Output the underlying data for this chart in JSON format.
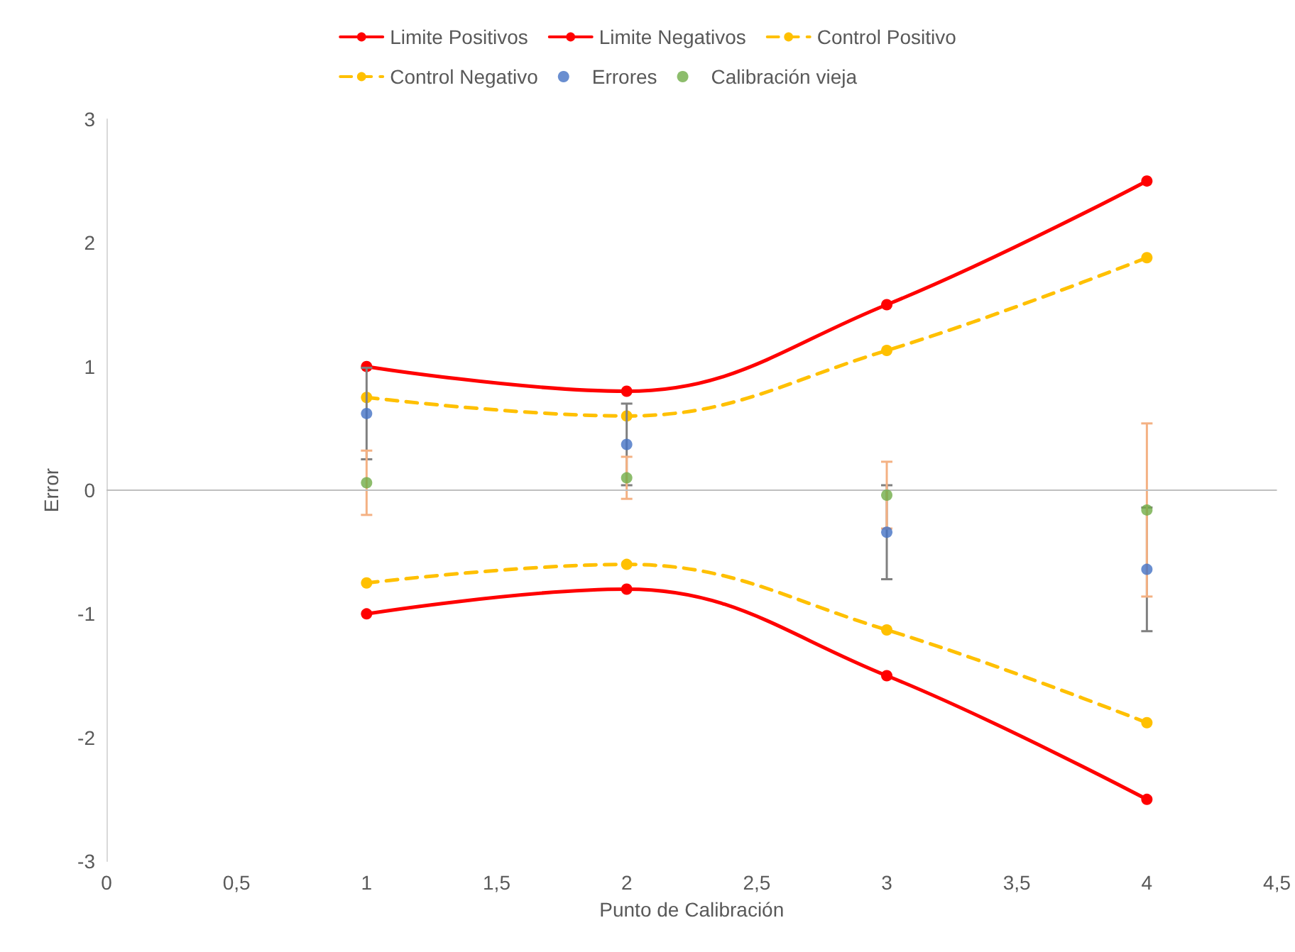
{
  "chart_data": {
    "type": "line",
    "xlabel": "Punto de Calibración",
    "ylabel": "Error",
    "xlim": [
      0,
      4.5
    ],
    "xticks": [
      0,
      {
        "value": 0.5,
        "label": "0,5"
      },
      1,
      {
        "value": 1.5,
        "label": "1,5"
      },
      2,
      {
        "value": 2.5,
        "label": "2,5"
      },
      3,
      {
        "value": 3.5,
        "label": "3,5"
      },
      4,
      {
        "value": 4.5,
        "label": "4,5"
      }
    ],
    "ylim": [
      -3,
      3
    ],
    "yticks": [
      -3,
      -2,
      -1,
      0,
      1,
      2,
      3
    ],
    "grid": false,
    "legend": "top",
    "ref_lines": [
      {
        "axis": "y",
        "value": 0,
        "color": "#bfbfbf"
      }
    ],
    "marker": "circle",
    "series": [
      {
        "name": "Limite Positivos",
        "color": "#ff0000",
        "line_style": "solid",
        "x": [
          1,
          2,
          3,
          4
        ],
        "values": [
          1,
          0.8,
          1.5,
          2.5
        ]
      },
      {
        "name": "Limite Negativos",
        "color": "#ff0000",
        "line_style": "solid",
        "x": [
          1,
          2,
          3,
          4
        ],
        "values": [
          -1,
          -0.8,
          -1.5,
          -2.5
        ]
      },
      {
        "name": "Control Positivo",
        "color": "#ffc000",
        "line_style": "dashed",
        "x": [
          1,
          2,
          3,
          4
        ],
        "values": [
          0.75,
          0.6,
          1.13,
          1.88
        ]
      },
      {
        "name": "Control Negativo",
        "color": "#ffc000",
        "line_style": "dashed",
        "x": [
          1,
          2,
          3,
          4
        ],
        "values": [
          -0.75,
          -0.6,
          -1.13,
          -1.88
        ]
      },
      {
        "name": "Errores",
        "type": "scatter",
        "color": "#4472c4",
        "x": [
          1,
          2,
          3,
          4
        ],
        "values": [
          0.62,
          0.37,
          -0.34,
          -0.64
        ],
        "errors": [
          0.37,
          0.33,
          0.38,
          0.5
        ]
      },
      {
        "name": "Calibración vieja",
        "type": "scatter",
        "color": "#70ad47",
        "x": [
          1,
          2,
          3,
          4
        ],
        "values": [
          0.06,
          0.1,
          -0.04,
          -0.16
        ],
        "errors": [
          0.26,
          0.17,
          0.27,
          0.7
        ]
      }
    ]
  }
}
